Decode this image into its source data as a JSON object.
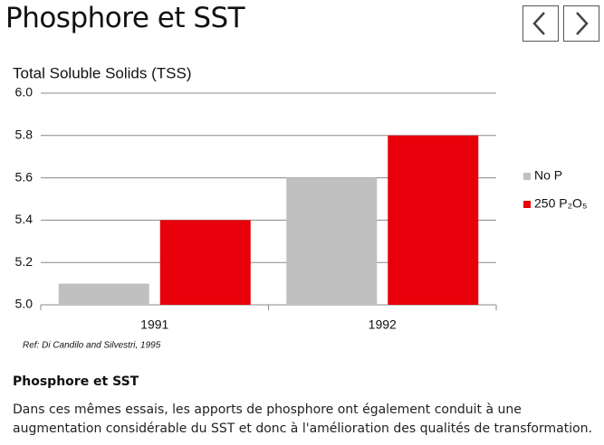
{
  "header": {
    "title": "Phosphore et SST"
  },
  "chart_data": {
    "type": "bar",
    "title": "Total Soluble Solids (TSS)",
    "categories": [
      "1991",
      "1992"
    ],
    "series": [
      {
        "name": "No P",
        "color": "#c0c0c0",
        "values": [
          5.1,
          5.6
        ]
      },
      {
        "name": "250 P₂O₅",
        "color": "#e8000b",
        "values": [
          5.4,
          5.8
        ]
      }
    ],
    "ylim": [
      5.0,
      6.0
    ],
    "yticks": [
      {
        "value": 5,
        "label": "5.0"
      },
      {
        "value": 5.2,
        "label": "5.2"
      },
      {
        "value": 5.4,
        "label": "5.4"
      },
      {
        "value": 5.6,
        "label": "5.6"
      },
      {
        "value": 5.8,
        "label": "5.8"
      },
      {
        "value": 6,
        "label": "6.0"
      }
    ],
    "grid": true,
    "legend": "right",
    "source": "Ref: Di Candilo and Silvestri, 1995"
  },
  "text": {
    "heading": "Phosphore et SST",
    "paragraph": "Dans ces mêmes essais, les apports de phosphore ont également conduit à une augmentation considérable du SST et donc à l'amélioration des qualités de transformation."
  }
}
